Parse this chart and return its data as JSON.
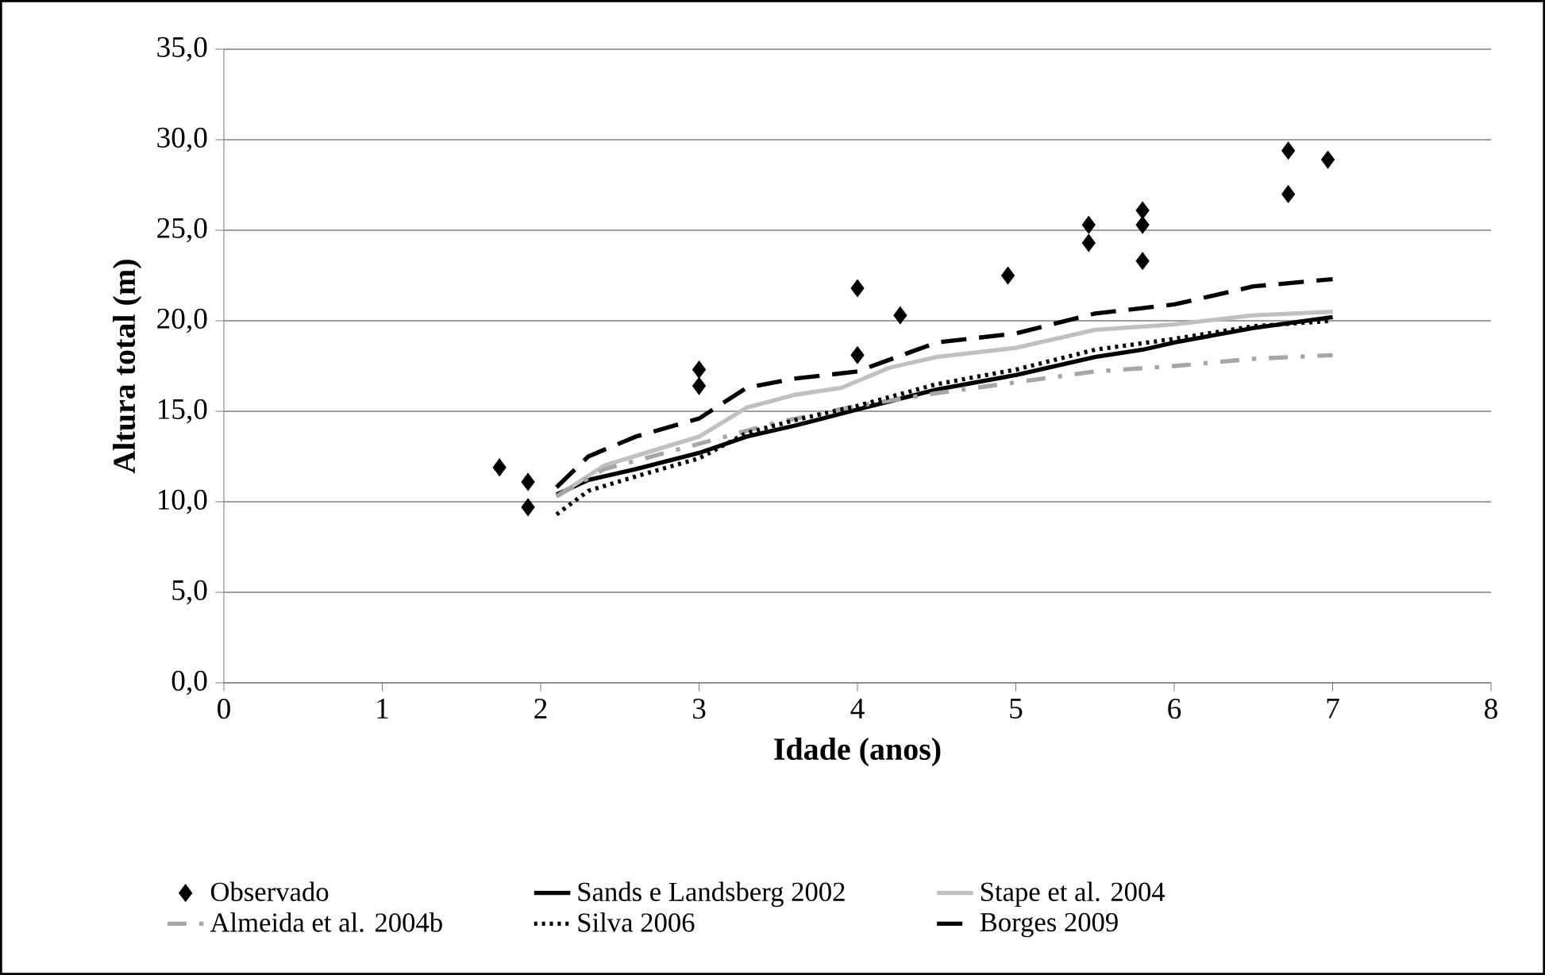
{
  "chart_data": {
    "type": "line",
    "xlabel": "Idade (anos)",
    "ylabel": "Altura total (m)",
    "xlim": [
      0,
      8
    ],
    "xticks": [
      0,
      1,
      2,
      3,
      4,
      5,
      6,
      7,
      8
    ],
    "ylim": [
      0,
      35
    ],
    "yticks": [
      {
        "value": 0,
        "label": "0,0"
      },
      {
        "value": 5,
        "label": "5,0"
      },
      {
        "value": 10,
        "label": "10,0"
      },
      {
        "value": 15,
        "label": "15,0"
      },
      {
        "value": 20,
        "label": "20,0"
      },
      {
        "value": 25,
        "label": "25,0"
      },
      {
        "value": 30,
        "label": "30,0"
      },
      {
        "value": 35,
        "label": "35,0"
      }
    ],
    "grid": "y",
    "legend": "bottom",
    "series": [
      {
        "name": "Observado",
        "type": "scatter",
        "marker": "diamond",
        "color": "#000000",
        "x": [
          1.74,
          1.92,
          1.92,
          3.0,
          3.0,
          4.0,
          4.0,
          4.27,
          4.95,
          5.46,
          5.46,
          5.8,
          5.8,
          5.8,
          6.72,
          6.72,
          6.97
        ],
        "values": [
          11.9,
          11.1,
          9.7,
          17.3,
          16.4,
          21.8,
          18.1,
          20.3,
          22.5,
          25.3,
          24.3,
          26.1,
          25.3,
          23.3,
          29.4,
          27.0,
          28.9
        ]
      },
      {
        "name": "Sands e Landsberg 2002",
        "line_style": "solid",
        "color": "#000000",
        "x": [
          2.1,
          2.3,
          2.6,
          3.0,
          3.3,
          3.6,
          4.0,
          4.5,
          5.0,
          5.5,
          5.8,
          6.0,
          6.5,
          7.0
        ],
        "values": [
          10.4,
          11.2,
          11.8,
          12.7,
          13.6,
          14.2,
          15.1,
          16.2,
          17.0,
          18.0,
          18.4,
          18.8,
          19.6,
          20.2
        ]
      },
      {
        "name": "Stape et al. 2004",
        "line_style": "solid",
        "color": "#c0c0c0",
        "x": [
          2.1,
          2.4,
          2.7,
          3.0,
          3.3,
          3.6,
          3.9,
          4.2,
          4.5,
          5.0,
          5.5,
          6.0,
          6.5,
          7.0
        ],
        "values": [
          10.3,
          12.0,
          12.8,
          13.6,
          15.2,
          15.9,
          16.3,
          17.4,
          18.0,
          18.5,
          19.5,
          19.8,
          20.3,
          20.5
        ]
      },
      {
        "name": "Almeida et al. 2004b",
        "line_style": "dashdot",
        "color": "#a6a6a6",
        "x": [
          2.1,
          2.4,
          2.7,
          3.0,
          3.5,
          4.0,
          4.5,
          5.0,
          5.5,
          6.0,
          6.5,
          7.0
        ],
        "values": [
          10.3,
          11.8,
          12.5,
          13.2,
          14.4,
          15.3,
          16.0,
          16.6,
          17.2,
          17.5,
          17.9,
          18.1
        ]
      },
      {
        "name": "Silva 2006",
        "line_style": "dotted",
        "color": "#000000",
        "x": [
          2.1,
          2.3,
          2.6,
          3.0,
          3.3,
          3.6,
          4.0,
          4.5,
          5.0,
          5.5,
          6.0,
          6.5,
          7.0
        ],
        "values": [
          9.3,
          10.6,
          11.4,
          12.4,
          13.8,
          14.5,
          15.3,
          16.5,
          17.3,
          18.4,
          19.0,
          19.7,
          20.0
        ]
      },
      {
        "name": "Borges 2009",
        "line_style": "dashed",
        "color": "#000000",
        "x": [
          2.1,
          2.3,
          2.6,
          3.0,
          3.3,
          3.6,
          4.0,
          4.5,
          5.0,
          5.5,
          6.0,
          6.5,
          7.0
        ],
        "values": [
          10.8,
          12.5,
          13.6,
          14.6,
          16.3,
          16.8,
          17.2,
          18.8,
          19.3,
          20.4,
          20.9,
          21.9,
          22.3
        ]
      }
    ]
  }
}
